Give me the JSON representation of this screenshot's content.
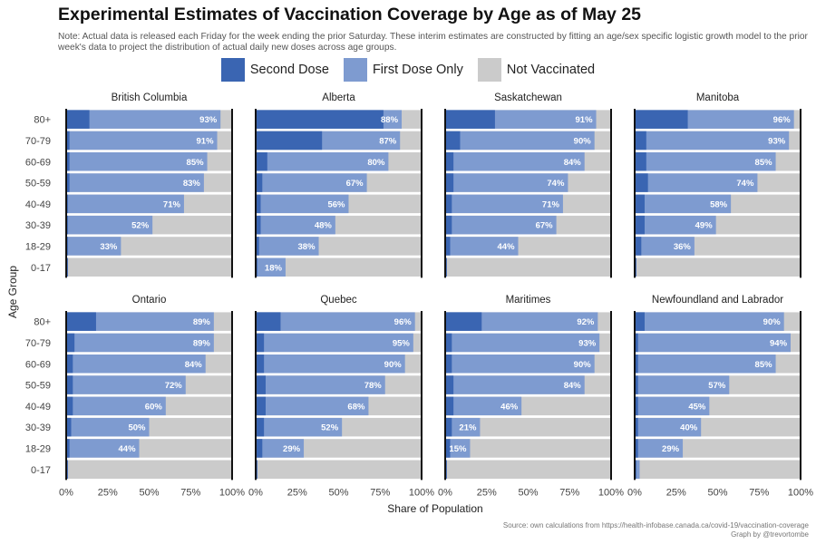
{
  "header": {
    "title": "Experimental Estimates of Vaccination Coverage by Age as of May 25",
    "note": "Note: Actual data is released each Friday for the week ending the prior Saturday. These interim estimates are constructed by fitting an age/sex specific logistic growth model to the prior week's data to project the distribution of actual daily new doses across age groups."
  },
  "footer": {
    "source": "Source: own calculations from https://health-infobase.canada.ca/covid-19/vaccination-coverage",
    "credit": "Graph by @trevortombe"
  },
  "colors": {
    "second_dose": "#3a65b2",
    "first_dose_only": "#7e9bd0",
    "not_vaccinated": "#cbcbcb",
    "bar_label": "#ffffff"
  },
  "chart_data": {
    "type": "bar",
    "orientation": "horizontal-stacked",
    "xlabel": "Share of Population",
    "ylabel": "Age Group",
    "xlim": [
      0,
      100
    ],
    "xticks": [
      "0%",
      "25%",
      "50%",
      "75%",
      "100%"
    ],
    "legend_position": "top",
    "categories": [
      "80+",
      "70-79",
      "60-69",
      "50-59",
      "40-49",
      "30-39",
      "18-29",
      "0-17"
    ],
    "legend": [
      {
        "key": "second_dose",
        "label": "Second Dose"
      },
      {
        "key": "first_dose_only",
        "label": "First Dose Only"
      },
      {
        "key": "not_vaccinated",
        "label": "Not Vaccinated"
      }
    ],
    "panels": [
      {
        "name": "British Columbia",
        "second": [
          14,
          2,
          2,
          2,
          1,
          1,
          1,
          1
        ],
        "first": [
          93,
          91,
          85,
          83,
          71,
          52,
          33,
          1
        ],
        "labels": [
          "93%",
          "91%",
          "85%",
          "83%",
          "71%",
          "52%",
          "33%",
          ""
        ]
      },
      {
        "name": "Alberta",
        "second": [
          77,
          40,
          7,
          4,
          3,
          3,
          2,
          1
        ],
        "first": [
          88,
          87,
          80,
          67,
          56,
          48,
          38,
          18
        ],
        "labels": [
          "88%",
          "87%",
          "80%",
          "67%",
          "56%",
          "48%",
          "38%",
          "18%"
        ]
      },
      {
        "name": "Saskatchewan",
        "second": [
          30,
          9,
          5,
          5,
          4,
          4,
          3,
          1
        ],
        "first": [
          91,
          90,
          84,
          74,
          71,
          67,
          44,
          1
        ],
        "labels": [
          "91%",
          "90%",
          "84%",
          "74%",
          "71%",
          "67%",
          "44%",
          ""
        ]
      },
      {
        "name": "Manitoba",
        "second": [
          32,
          7,
          7,
          8,
          6,
          6,
          4,
          1
        ],
        "first": [
          96,
          93,
          85,
          74,
          58,
          49,
          36,
          1
        ],
        "labels": [
          "96%",
          "93%",
          "85%",
          "74%",
          "58%",
          "49%",
          "36%",
          ""
        ]
      },
      {
        "name": "Ontario",
        "second": [
          18,
          5,
          4,
          4,
          4,
          3,
          2,
          1
        ],
        "first": [
          89,
          89,
          84,
          72,
          60,
          50,
          44,
          1
        ],
        "labels": [
          "89%",
          "89%",
          "84%",
          "72%",
          "60%",
          "50%",
          "44%",
          ""
        ]
      },
      {
        "name": "Quebec",
        "second": [
          15,
          5,
          5,
          6,
          6,
          5,
          4,
          1
        ],
        "first": [
          96,
          95,
          90,
          78,
          68,
          52,
          29,
          1
        ],
        "labels": [
          "96%",
          "95%",
          "90%",
          "78%",
          "68%",
          "52%",
          "29%",
          ""
        ]
      },
      {
        "name": "Maritimes",
        "second": [
          22,
          4,
          4,
          5,
          5,
          4,
          3,
          1
        ],
        "first": [
          92,
          93,
          90,
          84,
          46,
          21,
          15,
          1
        ],
        "labels": [
          "92%",
          "93%",
          "90%",
          "84%",
          "46%",
          "21%",
          "15%",
          ""
        ]
      },
      {
        "name": "Newfoundland and Labrador",
        "second": [
          6,
          2,
          2,
          2,
          2,
          2,
          2,
          1
        ],
        "first": [
          90,
          94,
          85,
          57,
          45,
          40,
          29,
          3
        ],
        "labels": [
          "90%",
          "94%",
          "85%",
          "57%",
          "45%",
          "40%",
          "29%",
          ""
        ]
      }
    ]
  }
}
